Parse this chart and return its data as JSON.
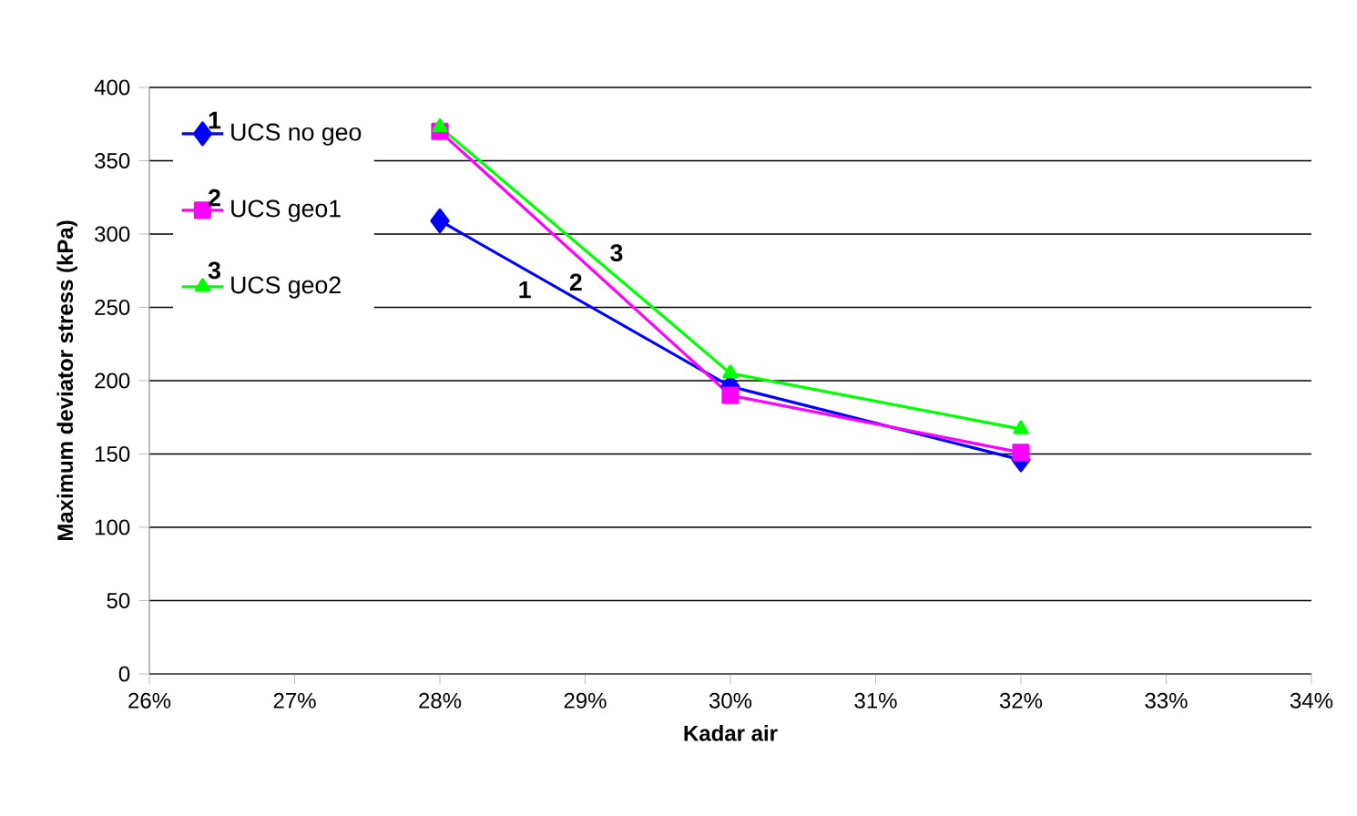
{
  "chart_data": {
    "type": "line",
    "xlabel": "Kadar air",
    "ylabel": "Maximum deviator stress (kPa)",
    "x": [
      28,
      30,
      32
    ],
    "series": [
      {
        "name": "UCS no geo",
        "color": "#0000ff",
        "marker": "diamond",
        "values": [
          309,
          196,
          146
        ]
      },
      {
        "name": "UCS geo1",
        "color": "#ff00ff",
        "marker": "square",
        "values": [
          370,
          190,
          151
        ]
      },
      {
        "name": "UCS geo2",
        "color": "#00ff00",
        "marker": "triangle",
        "values": [
          373,
          205,
          167
        ]
      }
    ],
    "xlim": [
      26,
      34
    ],
    "xticks": [
      {
        "value": 26,
        "label": "26%"
      },
      {
        "value": 27,
        "label": "27%"
      },
      {
        "value": 28,
        "label": "28%"
      },
      {
        "value": 29,
        "label": "29%"
      },
      {
        "value": 30,
        "label": "30%"
      },
      {
        "value": 31,
        "label": "31%"
      },
      {
        "value": 32,
        "label": "32%"
      },
      {
        "value": 33,
        "label": "33%"
      },
      {
        "value": 34,
        "label": "34%"
      }
    ],
    "ylim": [
      0,
      400
    ],
    "yticks": [
      0,
      50,
      100,
      150,
      200,
      250,
      300,
      350,
      400
    ],
    "grid": "y",
    "legend": "top left",
    "annotations": [
      "1",
      "2",
      "3",
      "1",
      "2",
      "3"
    ]
  }
}
